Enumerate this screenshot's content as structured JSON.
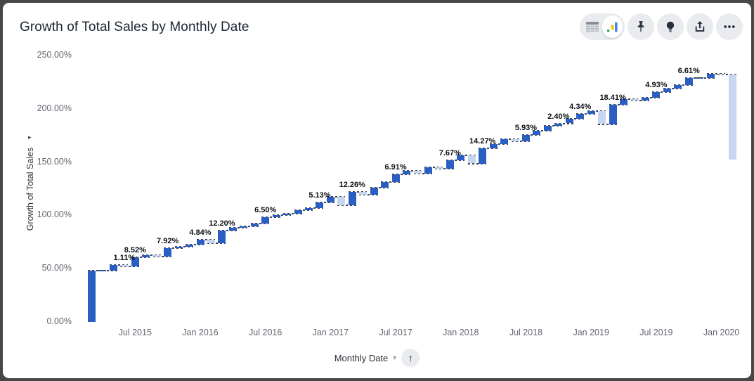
{
  "header": {
    "title": "Growth of Total Sales by Monthly Date",
    "toolbar": {
      "view_toggle": {
        "options": [
          "table-view",
          "chart-view"
        ],
        "selected": "chart-view"
      },
      "buttons": [
        "pin",
        "insights",
        "export",
        "more-options"
      ]
    }
  },
  "x_axis_controls": {
    "sort_indicator": "ascending"
  },
  "chart_data": {
    "type": "bar",
    "subtype": "waterfall",
    "title": "Growth of Total Sales by Monthly Date",
    "xlabel": "Monthly Date",
    "ylabel": "Growth of Total Sales",
    "unit": "%",
    "ylim": [
      0,
      250
    ],
    "grid": false,
    "legend": false,
    "y_ticks": [
      "0.00%",
      "50.00%",
      "100.00%",
      "150.00%",
      "200.00%",
      "250.00%"
    ],
    "x_ticks": [
      {
        "month_index": 4,
        "label": "Jul 2015"
      },
      {
        "month_index": 10,
        "label": "Jan 2016"
      },
      {
        "month_index": 16,
        "label": "Jul 2016"
      },
      {
        "month_index": 22,
        "label": "Jan 2017"
      },
      {
        "month_index": 28,
        "label": "Jul 2017"
      },
      {
        "month_index": 34,
        "label": "Jan 2018"
      },
      {
        "month_index": 40,
        "label": "Jul 2018"
      },
      {
        "month_index": 46,
        "label": "Jan 2019"
      },
      {
        "month_index": 52,
        "label": "Jul 2019"
      },
      {
        "month_index": 58,
        "label": "Jan 2020"
      }
    ],
    "colors": {
      "increase": "#2b5ec3",
      "decrease": "#c6d6f0"
    },
    "points": [
      {
        "month": "Mar 2015",
        "change": 48.0
      },
      {
        "month": "Apr 2015",
        "change": 0.3
      },
      {
        "month": "May 2015",
        "change": 5.2
      },
      {
        "month": "Jun 2015",
        "change": -1.11,
        "label": "1.11%"
      },
      {
        "month": "Jul 2015",
        "change": 8.52,
        "label": "8.52%"
      },
      {
        "month": "Aug 2015",
        "change": 1.5
      },
      {
        "month": "Sep 2015",
        "change": -0.8
      },
      {
        "month": "Oct 2015",
        "change": 7.92,
        "label": "7.92%"
      },
      {
        "month": "Nov 2015",
        "change": 1.2
      },
      {
        "month": "Dec 2015",
        "change": 1.8
      },
      {
        "month": "Jan 2016",
        "change": 4.84,
        "label": "4.84%"
      },
      {
        "month": "Feb 2016",
        "change": -3.5
      },
      {
        "month": "Mar 2016",
        "change": 12.2,
        "label": "12.20%"
      },
      {
        "month": "Apr 2016",
        "change": 2.2
      },
      {
        "month": "May 2016",
        "change": 1.4
      },
      {
        "month": "Jun 2016",
        "change": 2.4
      },
      {
        "month": "Jul 2016",
        "change": 6.5,
        "label": "6.50%"
      },
      {
        "month": "Aug 2016",
        "change": 1.6
      },
      {
        "month": "Sep 2016",
        "change": 1.4
      },
      {
        "month": "Oct 2016",
        "change": 3.0
      },
      {
        "month": "Nov 2016",
        "change": 2.5
      },
      {
        "month": "Dec 2016",
        "change": 5.13,
        "label": "5.13%"
      },
      {
        "month": "Jan 2017",
        "change": 5.5
      },
      {
        "month": "Feb 2017",
        "change": -8.0
      },
      {
        "month": "Mar 2017",
        "change": 12.26,
        "label": "12.26%"
      },
      {
        "month": "Apr 2017",
        "change": -2.5
      },
      {
        "month": "May 2017",
        "change": 6.5
      },
      {
        "month": "Jun 2017",
        "change": 5.5
      },
      {
        "month": "Jul 2017",
        "change": 6.91,
        "label": "6.91%"
      },
      {
        "month": "Aug 2017",
        "change": 3.2
      },
      {
        "month": "Sep 2017",
        "change": -2.3
      },
      {
        "month": "Oct 2017",
        "change": 6.0
      },
      {
        "month": "Nov 2017",
        "change": -1.2
      },
      {
        "month": "Dec 2017",
        "change": 7.67,
        "label": "7.67%"
      },
      {
        "month": "Jan 2018",
        "change": 4.5
      },
      {
        "month": "Feb 2018",
        "change": -7.5
      },
      {
        "month": "Mar 2018",
        "change": 14.27,
        "label": "14.27%"
      },
      {
        "month": "Apr 2018",
        "change": 4.0
      },
      {
        "month": "May 2018",
        "change": 4.5
      },
      {
        "month": "Jun 2018",
        "change": -2.0
      },
      {
        "month": "Jul 2018",
        "change": 5.93,
        "label": "5.93%"
      },
      {
        "month": "Aug 2018",
        "change": 4.0
      },
      {
        "month": "Sep 2018",
        "change": 4.5
      },
      {
        "month": "Oct 2018",
        "change": 2.4,
        "label": "2.40%"
      },
      {
        "month": "Nov 2018",
        "change": 4.5
      },
      {
        "month": "Dec 2018",
        "change": 4.34,
        "label": "4.34%"
      },
      {
        "month": "Jan 2019",
        "change": 3.0
      },
      {
        "month": "Feb 2019",
        "change": -12.5
      },
      {
        "month": "Mar 2019",
        "change": 18.41,
        "label": "18.41%"
      },
      {
        "month": "Apr 2019",
        "change": 5.0
      },
      {
        "month": "May 2019",
        "change": -1.5
      },
      {
        "month": "Jun 2019",
        "change": 3.0
      },
      {
        "month": "Jul 2019",
        "change": 4.93,
        "label": "4.93%"
      },
      {
        "month": "Aug 2019",
        "change": 3.5
      },
      {
        "month": "Sep 2019",
        "change": 3.0
      },
      {
        "month": "Oct 2019",
        "change": 6.61,
        "label": "6.61%"
      },
      {
        "month": "Nov 2019",
        "change": 0.5
      },
      {
        "month": "Dec 2019",
        "change": 4.0
      },
      {
        "month": "Jan 2020",
        "change": -0.8
      },
      {
        "month": "Feb 2020",
        "change": -80.0
      }
    ]
  }
}
